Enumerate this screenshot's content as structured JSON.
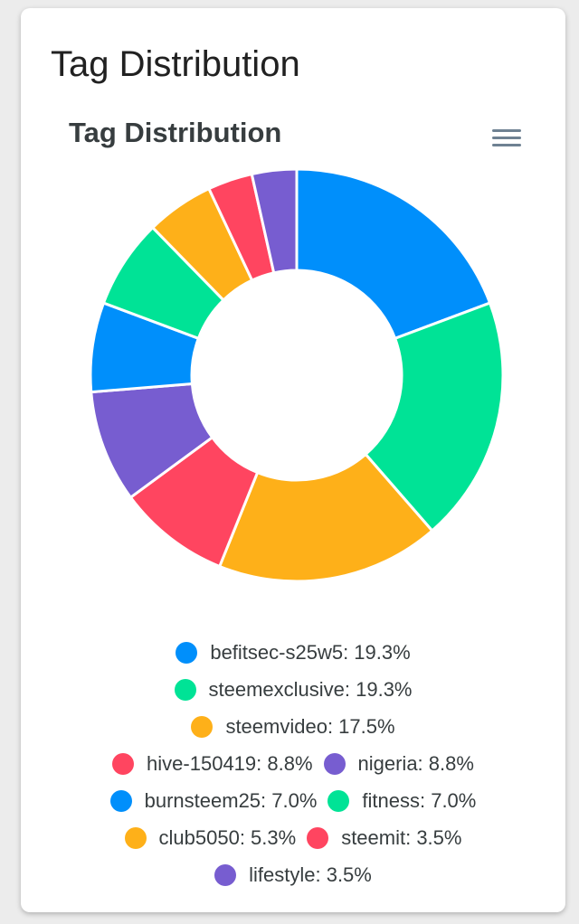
{
  "card": {
    "title": "Tag Distribution"
  },
  "chart_data": {
    "type": "pie",
    "variant": "donut",
    "title": "Tag Distribution",
    "unit": "%",
    "legend_position": "bottom",
    "slices": [
      {
        "label": "befitsec-s25w5",
        "value": 19.3,
        "color": "#008ffb"
      },
      {
        "label": "steemexclusive",
        "value": 19.3,
        "color": "#00e396"
      },
      {
        "label": "steemvideo",
        "value": 17.5,
        "color": "#feb019"
      },
      {
        "label": "hive-150419",
        "value": 8.8,
        "color": "#ff4560"
      },
      {
        "label": "nigeria",
        "value": 8.8,
        "color": "#775dd0"
      },
      {
        "label": "burnsteem25",
        "value": 7.0,
        "color": "#008ffb"
      },
      {
        "label": "fitness",
        "value": 7.0,
        "color": "#00e396"
      },
      {
        "label": "club5050",
        "value": 5.3,
        "color": "#feb019"
      },
      {
        "label": "steemit",
        "value": 3.5,
        "color": "#ff4560"
      },
      {
        "label": "lifestyle",
        "value": 3.5,
        "color": "#775dd0"
      }
    ],
    "legend_rows": [
      [
        0
      ],
      [
        1
      ],
      [
        2
      ],
      [
        3,
        4
      ],
      [
        5,
        6
      ],
      [
        7,
        8
      ],
      [
        9
      ]
    ]
  },
  "toolbar": {
    "menu_icon": "hamburger-menu-icon"
  }
}
